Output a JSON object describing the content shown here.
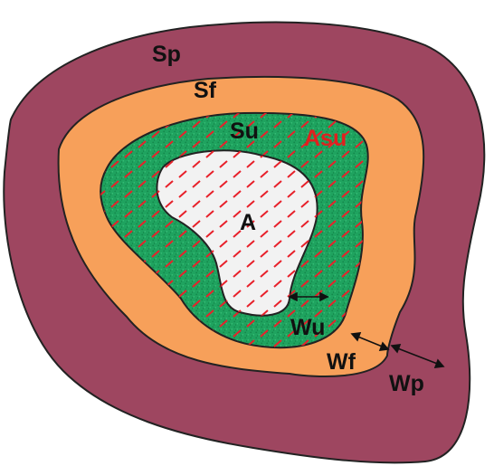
{
  "labels": {
    "sp": "Sp",
    "sf": "Sf",
    "su": "Su",
    "asu": "Asu",
    "a": "A",
    "wu": "Wu",
    "wf": "Wf",
    "wp": "Wp"
  },
  "colors": {
    "outer_zone": "#9E4660",
    "middle_zone": "#F7A05A",
    "inner_zone": "#1FA35F",
    "core_zone": "#F2F2F2",
    "hatch": "#E8202A",
    "outline": "#222222",
    "label_text": "#111111",
    "asu_text": "#E0201E"
  }
}
